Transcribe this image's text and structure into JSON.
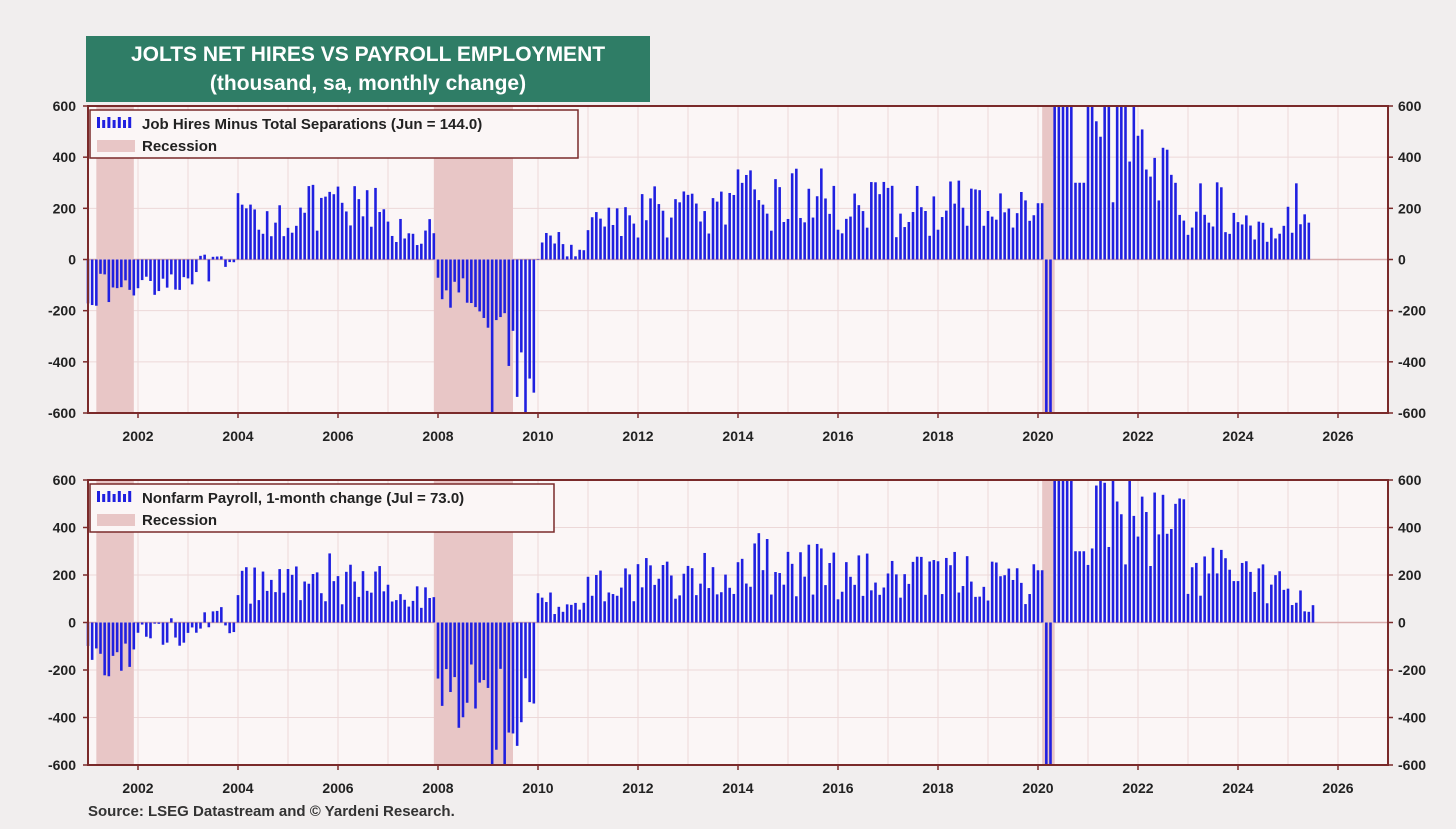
{
  "header": {
    "title_line1": "JOLTS NET HIRES VS PAYROLL EMPLOYMENT",
    "title_line2": "(thousand, sa, monthly change)"
  },
  "footer": {
    "source": "Source: LSEG Datastream and © Yardeni Research."
  },
  "colors": {
    "bar": "#2020e0",
    "recession": "#e8c6c6",
    "plot_bg": "#fbf6f6",
    "frame": "#7a2a2a"
  },
  "chart_data": [
    {
      "type": "bar",
      "series": [
        {
          "name": "Job Hires Minus Total Separations (Jun = 144.0)",
          "yearly_avg": {
            "2001": -120,
            "2002": -80,
            "2003": -40,
            "2004": 170,
            "2005": 190,
            "2006": 190,
            "2007": 110,
            "2008": -150,
            "2009": -450,
            "2010": 60,
            "2011": 160,
            "2012": 190,
            "2013": 190,
            "2014": 230,
            "2015": 240,
            "2016": 200,
            "2017": 190,
            "2018": 210,
            "2019": 180,
            "2021": 480,
            "2022": 330,
            "2023": 200,
            "2024": 120,
            "2025": 200
          },
          "covid": {
            "2020-03": -600,
            "2020-04": -600,
            "2020-06": 600,
            "2020-07": 600,
            "2020-08": 600,
            "2020-09": 600
          },
          "last": {
            "date": "2025-06",
            "value": 144.0
          }
        }
      ],
      "legend": [
        "Job Hires Minus Total Separations (Jun = 144.0)",
        "Recession"
      ],
      "recessions": [
        [
          "2001-03",
          "2001-11"
        ],
        [
          "2007-12",
          "2009-06"
        ],
        [
          "2020-02",
          "2020-04"
        ]
      ],
      "x_ticks": [
        "2002",
        "2004",
        "2006",
        "2008",
        "2010",
        "2012",
        "2014",
        "2016",
        "2018",
        "2020",
        "2022",
        "2024",
        "2026"
      ],
      "y_ticks": [
        "600",
        "400",
        "200",
        "0",
        "-200",
        "-400",
        "-600"
      ],
      "ylim": [
        -600,
        600
      ],
      "xlim": [
        "2001-01",
        "2026-12"
      ]
    },
    {
      "type": "bar",
      "series": [
        {
          "name": "Nonfarm Payroll, 1-month change (Jul = 73.0)",
          "yearly_avg": {
            "2001": -150,
            "2002": -40,
            "2003": 10,
            "2004": 160,
            "2005": 190,
            "2006": 170,
            "2007": 100,
            "2008": -300,
            "2009": -420,
            "2010": 80,
            "2011": 170,
            "2012": 180,
            "2013": 190,
            "2014": 250,
            "2015": 230,
            "2016": 190,
            "2017": 180,
            "2018": 200,
            "2019": 170,
            "2021": 500,
            "2022": 380,
            "2023": 220,
            "2024": 170,
            "2025": 90
          },
          "covid": {
            "2020-03": -600,
            "2020-04": -600,
            "2020-05": 600,
            "2020-06": 600,
            "2020-07": 600,
            "2020-08": 600
          },
          "last": {
            "date": "2025-07",
            "value": 73.0
          }
        }
      ],
      "legend": [
        "Nonfarm Payroll, 1-month change (Jul = 73.0)",
        "Recession"
      ],
      "recessions": [
        [
          "2001-03",
          "2001-11"
        ],
        [
          "2007-12",
          "2009-06"
        ],
        [
          "2020-02",
          "2020-04"
        ]
      ],
      "x_ticks": [
        "2002",
        "2004",
        "2006",
        "2008",
        "2010",
        "2012",
        "2014",
        "2016",
        "2018",
        "2020",
        "2022",
        "2024",
        "2026"
      ],
      "y_ticks": [
        "600",
        "400",
        "200",
        "0",
        "-200",
        "-400",
        "-600"
      ],
      "ylim": [
        -600,
        600
      ],
      "xlim": [
        "2001-01",
        "2026-12"
      ]
    }
  ]
}
